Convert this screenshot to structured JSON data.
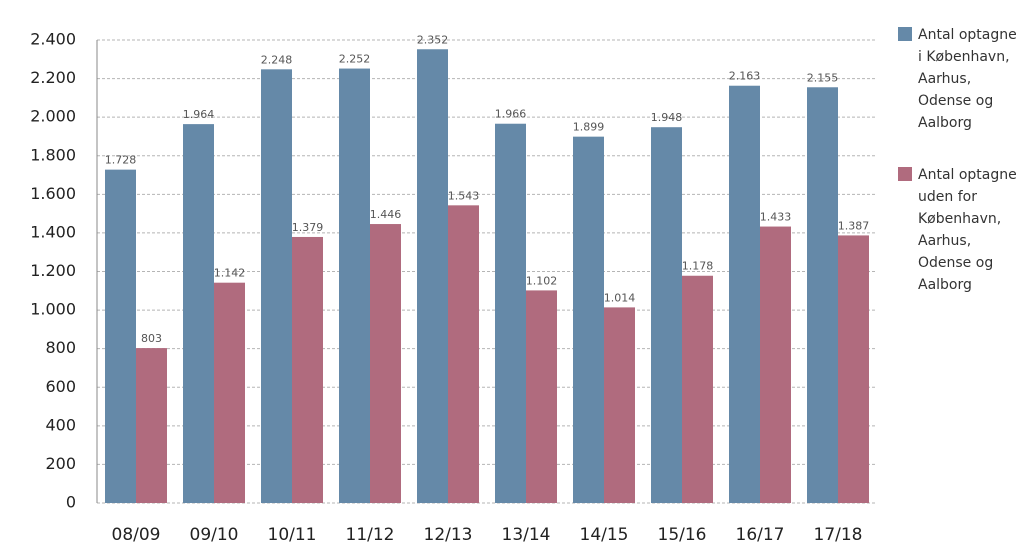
{
  "chart_data": {
    "type": "bar",
    "categories": [
      "08/09",
      "09/10",
      "10/11",
      "11/12",
      "12/13",
      "13/14",
      "14/15",
      "15/16",
      "16/17",
      "17/18"
    ],
    "series": [
      {
        "name": "Antal optagne i København, Aarhus, Odense og Aalborg",
        "color": "#6589a8",
        "values": [
          1728,
          1964,
          2248,
          2252,
          2352,
          1966,
          1899,
          1948,
          2163,
          2155
        ],
        "value_labels": [
          "1.728",
          "1.964",
          "2.248",
          "2.252",
          "2.352",
          "1.966",
          "1.899",
          "1.948",
          "2.163",
          "2.155"
        ]
      },
      {
        "name": "Antal optagne uden for København, Aarhus, Odense og Aalborg",
        "color": "#b06b7e",
        "values": [
          803,
          1142,
          1379,
          1446,
          1543,
          1102,
          1014,
          1178,
          1433,
          1387
        ],
        "value_labels": [
          "803",
          "1.142",
          "1.379",
          "1.446",
          "1.543",
          "1.102",
          "1.014",
          "1.178",
          "1.433",
          "1.387"
        ]
      }
    ],
    "ylim": [
      0,
      2400
    ],
    "yticks": [
      0,
      200,
      400,
      600,
      800,
      {
        "value": 1000,
        "label": "1.000"
      },
      {
        "value": 1200,
        "label": "1.200"
      },
      {
        "value": 1400,
        "label": "1.400"
      },
      {
        "value": 1600,
        "label": "1.600"
      },
      {
        "value": 1800,
        "label": "1.800"
      },
      {
        "value": 2000,
        "label": "2.000"
      },
      {
        "value": 2200,
        "label": "2.200"
      },
      {
        "value": 2400,
        "label": "2.400"
      }
    ],
    "grid": true,
    "legend": "right"
  }
}
